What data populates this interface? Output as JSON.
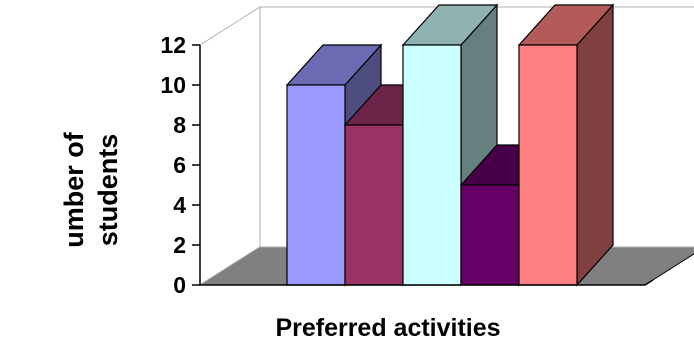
{
  "chart_data": {
    "type": "bar",
    "style": "3d-column",
    "title": "",
    "xlabel": "Preferred activities",
    "ylabel_lines": [
      "umber of",
      "students"
    ],
    "ylim": [
      0,
      12
    ],
    "yticks": [
      "0",
      "2",
      "4",
      "6",
      "8",
      "10",
      "12"
    ],
    "grid": false,
    "legend": "none",
    "values": [
      10,
      8,
      12,
      5,
      12
    ],
    "colors": [
      "#9999ff",
      "#993366",
      "#ccffff",
      "#660066",
      "#ff8080"
    ],
    "floor_color": "#808080",
    "wall_color": "#ffffff"
  }
}
